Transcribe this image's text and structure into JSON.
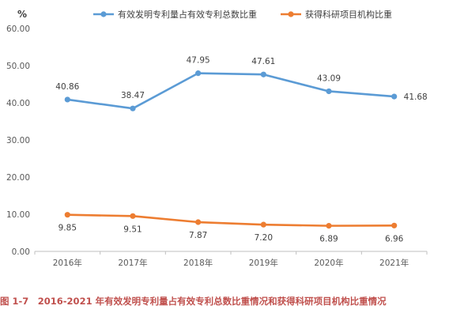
{
  "chart_data": {
    "type": "line",
    "y_unit": "%",
    "categories": [
      "2016年",
      "2017年",
      "2018年",
      "2019年",
      "2020年",
      "2021年"
    ],
    "ylim": [
      0,
      60
    ],
    "yticks": [
      "0.00",
      "10.00",
      "20.00",
      "30.00",
      "40.00",
      "50.00",
      "60.00"
    ],
    "grid": false,
    "legend_position": "top",
    "series": [
      {
        "name": "有效发明专利量占有效专利总数比重",
        "color": "#5b9bd5",
        "values": [
          40.86,
          38.47,
          47.95,
          47.61,
          43.09,
          41.68
        ],
        "labels": [
          "40.86",
          "38.47",
          "47.95",
          "47.61",
          "43.09",
          "41.68"
        ]
      },
      {
        "name": "获得科研项目机构比重",
        "color": "#ed7d31",
        "values": [
          9.85,
          9.51,
          7.87,
          7.2,
          6.89,
          6.96
        ],
        "labels": [
          "9.85",
          "9.51",
          "7.87",
          "7.20",
          "6.89",
          "6.96"
        ]
      }
    ]
  },
  "caption": "图 1-7　2016-2021 年有效发明专利量占有效专利总数比重情况和获得科研项目机构比重情况"
}
